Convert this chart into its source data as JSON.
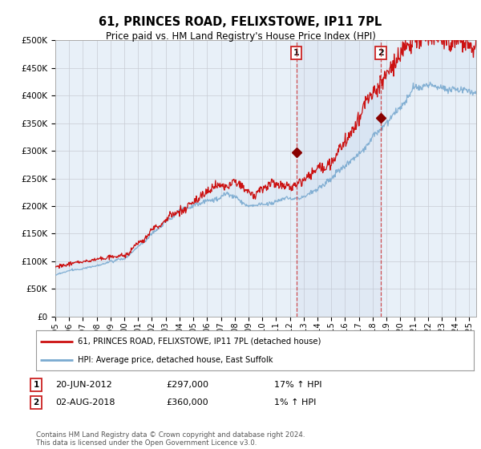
{
  "title": "61, PRINCES ROAD, FELIXSTOWE, IP11 7PL",
  "subtitle": "Price paid vs. HM Land Registry's House Price Index (HPI)",
  "ylim": [
    0,
    500000
  ],
  "yticks": [
    0,
    50000,
    100000,
    150000,
    200000,
    250000,
    300000,
    350000,
    400000,
    450000,
    500000
  ],
  "ytick_labels": [
    "£0",
    "£50K",
    "£100K",
    "£150K",
    "£200K",
    "£250K",
    "£300K",
    "£350K",
    "£400K",
    "£450K",
    "£500K"
  ],
  "hpi_color": "#7aaad0",
  "price_color": "#cc1111",
  "background_color": "#ffffff",
  "plot_bg_color": "#e8f0f8",
  "grid_color": "#c8ccd4",
  "sale1_date": 2012.47,
  "sale1_price": 297000,
  "sale2_date": 2018.58,
  "sale2_price": 360000,
  "legend_entry1": "61, PRINCES ROAD, FELIXSTOWE, IP11 7PL (detached house)",
  "legend_entry2": "HPI: Average price, detached house, East Suffolk",
  "footnote": "Contains HM Land Registry data © Crown copyright and database right 2024.\nThis data is licensed under the Open Government Licence v3.0.",
  "xmin": 1995.0,
  "xmax": 2025.5
}
